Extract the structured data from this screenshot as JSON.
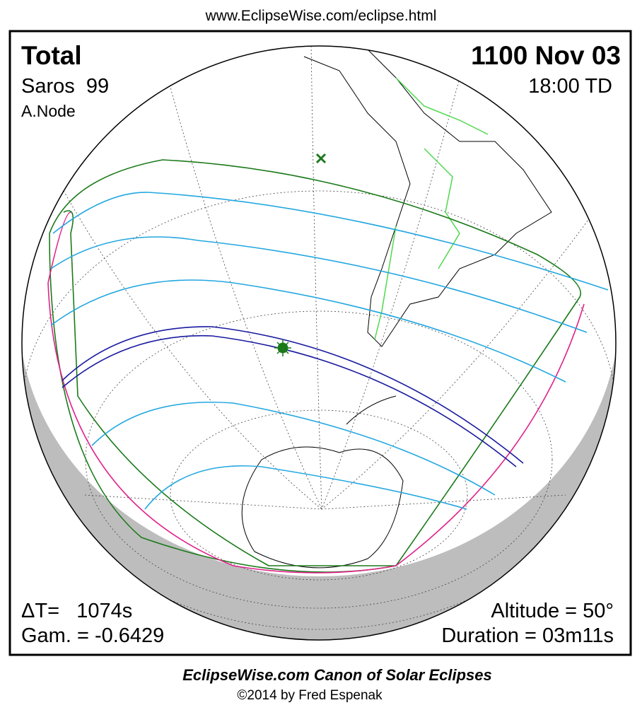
{
  "header": {
    "url": "www.EclipseWise.com/eclipse.html"
  },
  "panel": {
    "eclipse_type": "Total",
    "date": "1100 Nov 03",
    "saros": "Saros  99",
    "time": "18:00 TD",
    "node": "A.Node",
    "delta_t": "ΔT=   1074s",
    "gamma": "Gam. = -0.6429",
    "altitude": "Altitude = 50°",
    "duration": "Duration = 03m11s"
  },
  "footer": {
    "title": "EclipseWise.com Canon of Solar Eclipses",
    "credit": "©2014 by Fred Espenak"
  }
}
